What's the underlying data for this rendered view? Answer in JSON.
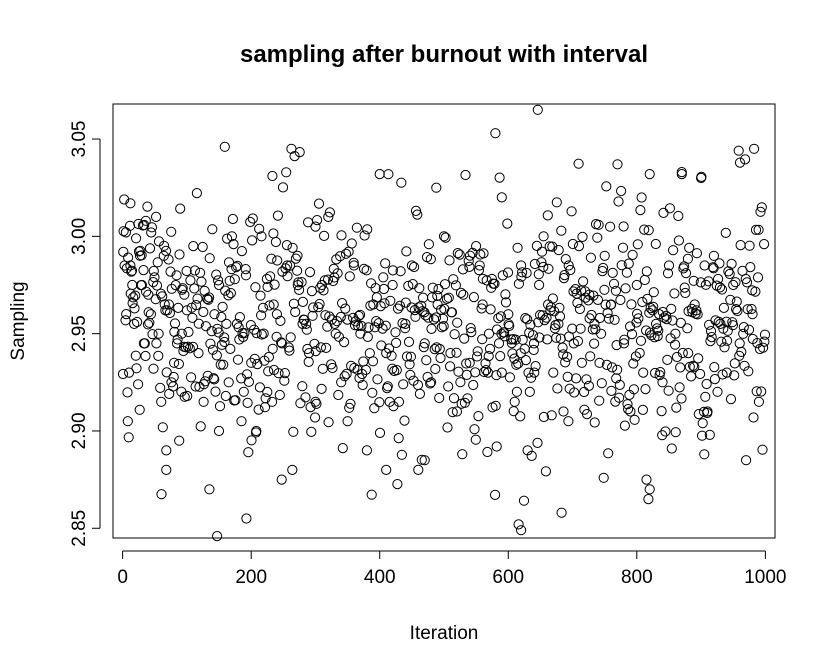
{
  "chart_data": {
    "type": "scatter",
    "title": "sampling after burnout with interval",
    "xlabel": "Iteration",
    "ylabel": "Sampling",
    "xlim": [
      -15,
      1015
    ],
    "ylim": [
      2.845,
      3.068
    ],
    "xticks": [
      0,
      200,
      400,
      600,
      800,
      1000
    ],
    "xtick_labels": [
      "0",
      "200",
      "400",
      "600",
      "800",
      "1000"
    ],
    "yticks": [
      2.85,
      2.9,
      2.95,
      3.0,
      3.05
    ],
    "ytick_labels": [
      "2.85",
      "2.90",
      "2.95",
      "3.00",
      "3.05"
    ],
    "grid": false,
    "marker": "open-circle",
    "n_points": 1000,
    "series": [
      {
        "x": [
          1,
          3,
          5,
          8,
          10,
          12,
          15,
          18,
          21,
          24,
          27,
          30,
          33,
          36,
          40,
          44,
          48,
          52,
          56,
          60,
          64,
          68,
          72,
          76,
          80,
          84,
          88,
          92,
          96,
          100,
          110,
          118,
          126,
          135,
          143,
          150,
          158,
          165,
          170,
          178,
          185,
          192,
          200,
          208,
          216,
          225,
          233,
          240,
          248,
          256,
          264,
          272,
          280,
          290,
          300,
          310,
          320,
          330,
          340,
          350,
          360,
          370,
          380,
          390,
          400,
          410,
          420,
          430,
          440,
          450,
          460,
          470,
          480,
          490,
          500,
          510,
          520,
          530,
          540,
          550,
          560,
          570,
          580,
          590,
          600,
          610,
          620,
          630,
          640,
          648,
          655,
          662,
          670,
          678,
          686,
          694,
          702,
          710,
          718,
          726,
          734,
          742,
          750,
          760,
          770,
          780,
          790,
          800,
          810,
          820,
          830,
          840,
          850,
          860,
          870,
          880,
          890,
          900,
          910,
          920,
          930,
          940,
          950,
          960,
          970,
          980,
          990,
          998,
          147,
          159,
          616,
          620,
          683,
          150,
          818,
          820,
          646,
          590,
          582,
          768,
          870,
          815,
          905,
          410,
          488,
          235,
          12,
          68,
          300,
          470
        ],
        "y": [
          2.992,
          2.985,
          3.002,
          2.905,
          2.93,
          3.017,
          2.975,
          2.955,
          2.999,
          2.924,
          2.99,
          2.975,
          2.945,
          3.008,
          2.97,
          2.96,
          2.932,
          3.01,
          2.95,
          2.915,
          2.99,
          2.89,
          2.965,
          2.925,
          2.935,
          2.98,
          2.895,
          2.95,
          2.97,
          2.962,
          2.995,
          2.94,
          2.915,
          2.87,
          2.96,
          2.975,
          2.948,
          2.925,
          3.0,
          2.955,
          2.905,
          2.98,
          2.935,
          2.9,
          3.0,
          2.92,
          3.031,
          2.96,
          2.945,
          2.985,
          2.88,
          2.99,
          2.955,
          2.94,
          2.915,
          2.975,
          3.01,
          2.955,
          2.925,
          2.905,
          2.985,
          2.95,
          2.89,
          2.965,
          3.032,
          2.94,
          2.975,
          2.915,
          2.955,
          2.985,
          2.88,
          2.945,
          2.925,
          2.965,
          3.0,
          2.94,
          2.91,
          2.97,
          2.935,
          2.995,
          2.965,
          2.95,
          3.053,
          2.93,
          2.96,
          2.915,
          2.985,
          2.89,
          2.945,
          2.975,
          3.0,
          2.965,
          2.93,
          2.955,
          2.91,
          2.985,
          2.945,
          2.995,
          2.92,
          2.97,
          2.955,
          2.935,
          2.99,
          2.965,
          3.037,
          2.945,
          2.91,
          2.975,
          2.93,
          3.032,
          2.955,
          2.925,
          2.985,
          2.95,
          3.032,
          2.94,
          2.965,
          3.03,
          2.91,
          2.99,
          2.955,
          2.93,
          2.975,
          2.945,
          2.885,
          2.96,
          2.915,
          2.996,
          2.846,
          3.046,
          2.852,
          2.849,
          2.858,
          2.9,
          2.865,
          2.87,
          3.065,
          3.02,
          2.892,
          2.927,
          3.033,
          2.875,
          2.888,
          2.88,
          3.025,
          2.965,
          2.985,
          2.88,
          3.005,
          2.885
        ]
      }
    ]
  }
}
